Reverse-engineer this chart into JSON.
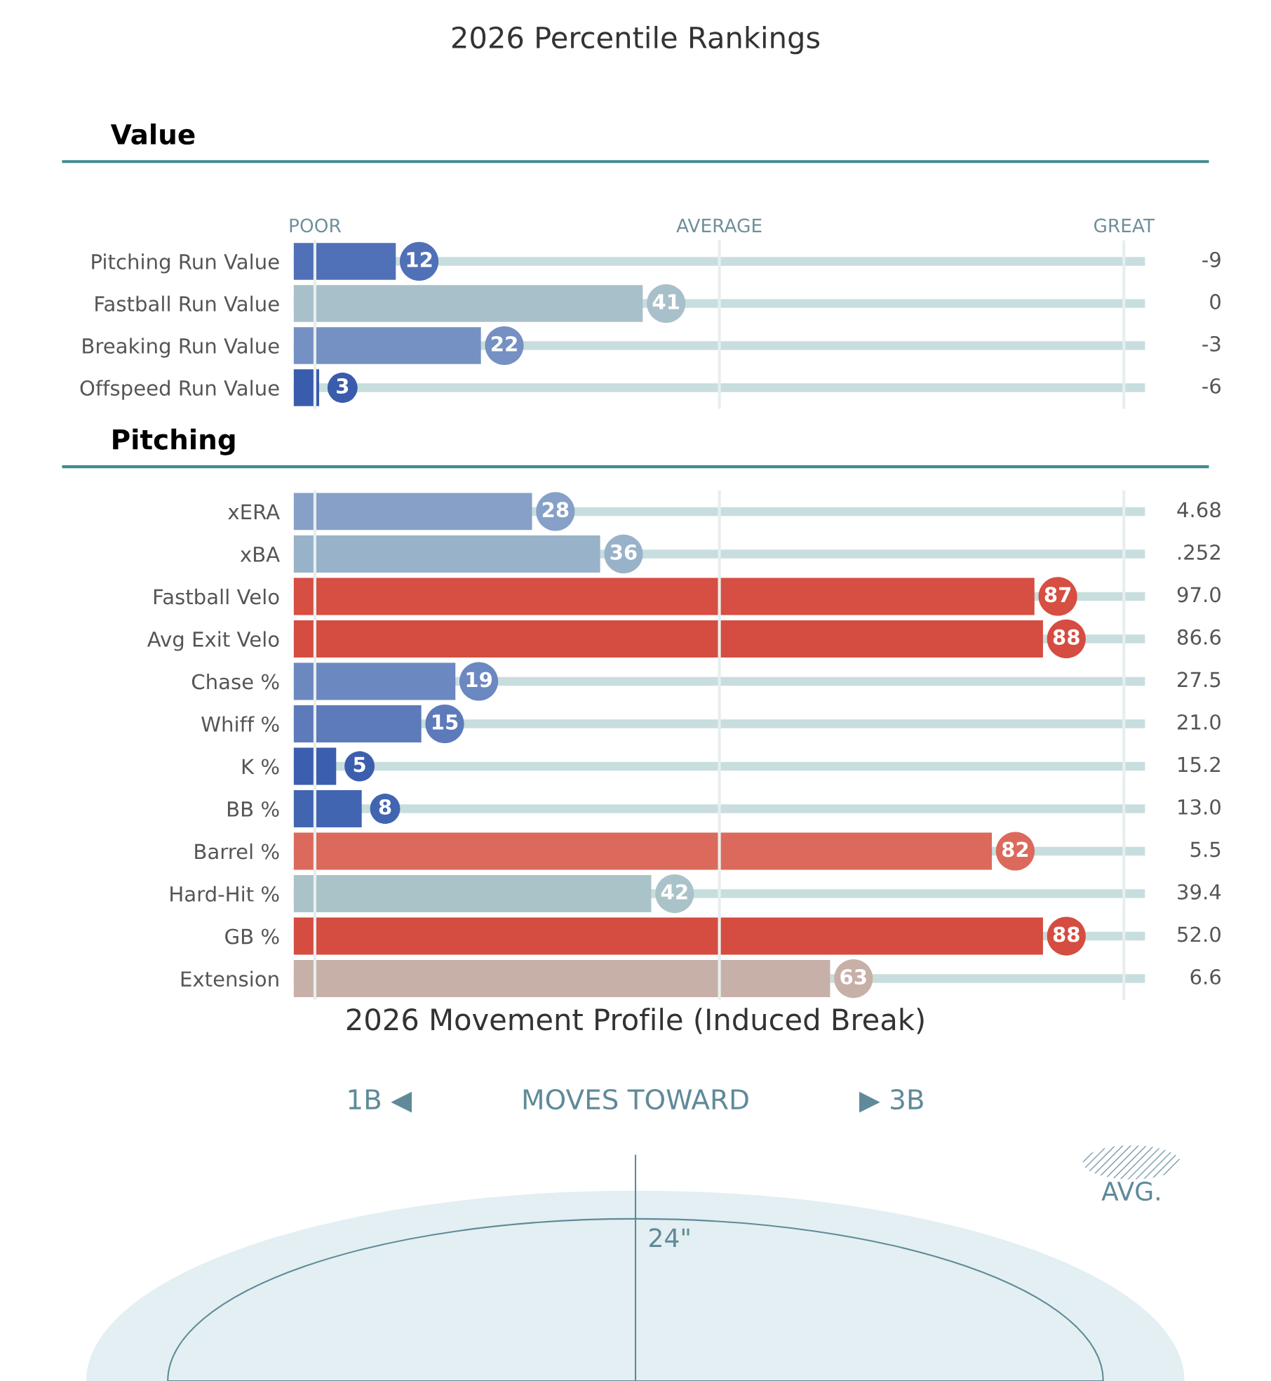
{
  "chart_data": [
    {
      "type": "bar",
      "orientation": "horizontal",
      "title": "2026 Percentile Rankings",
      "subtitle": "Value",
      "categories": [
        "Pitching Run Value",
        "Fastball Run Value",
        "Breaking Run Value",
        "Offspeed Run Value"
      ],
      "values": [
        12,
        41,
        22,
        3
      ],
      "colors": [
        "#5070b8",
        "#a8c0ca",
        "#7590c2",
        "#3a5cad"
      ],
      "data_labels": true,
      "xlim": [
        0,
        100
      ],
      "tick_labels": "y",
      "grid": false,
      "ref_lines": [
        {
          "axis": "x",
          "value": 2.5,
          "label": "POOR"
        },
        {
          "axis": "x",
          "value": 50,
          "label": "AVERAGE"
        },
        {
          "axis": "x",
          "value": 97.5,
          "label": "GREAT"
        }
      ],
      "annotations": [
        "-9",
        "0",
        "-3",
        "-6"
      ]
    },
    {
      "type": "bar",
      "orientation": "horizontal",
      "subtitle": "Pitching",
      "categories": [
        "xERA",
        "xBA",
        "Fastball Velo",
        "Avg Exit Velo",
        "Chase %",
        "Whiff %",
        "K %",
        "BB %",
        "Barrel %",
        "Hard-Hit %",
        "GB %",
        "Extension"
      ],
      "values": [
        28,
        36,
        87,
        88,
        19,
        15,
        5,
        8,
        82,
        42,
        88,
        63
      ],
      "colors": [
        "#86a0c8",
        "#98b2ca",
        "#d64f42",
        "#d54c40",
        "#6c88c0",
        "#5d7bbb",
        "#3c5eae",
        "#4265b1",
        "#db6a5c",
        "#aac3c9",
        "#d54c40",
        "#c7b0a8"
      ],
      "data_labels": true,
      "xlim": [
        0,
        100
      ],
      "tick_labels": "y",
      "grid": false,
      "ref_lines": [
        {
          "axis": "x",
          "value": 2.5,
          "label": null
        },
        {
          "axis": "x",
          "value": 50,
          "label": null
        },
        {
          "axis": "x",
          "value": 97.5,
          "label": null
        }
      ],
      "annotations": [
        "4.68",
        ".252",
        "97.0",
        "86.6",
        "27.5",
        "21.0",
        "15.2",
        "13.0",
        "5.5",
        "39.4",
        "52.0",
        "6.6"
      ]
    },
    {
      "type": "other",
      "title": "2026 Movement Profile (Induced Break)",
      "annotations": [
        "1B ◀",
        "MOVES TOWARD",
        "▶ 3B",
        "AVG.",
        "24\""
      ]
    }
  ]
}
